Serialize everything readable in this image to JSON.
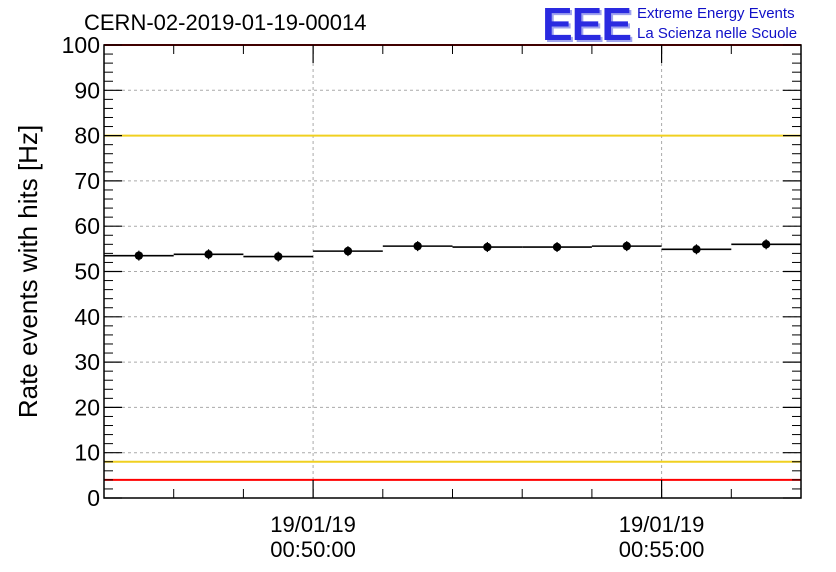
{
  "header": {
    "title": "CERN-02-2019-01-19-00014",
    "logo_text": "EEE",
    "logo_line1": "Extreme Energy Events",
    "logo_line2": "La Scienza nelle Scuole"
  },
  "colors": {
    "red_limit": "#ff0000",
    "yellow_limit": "#f0d020",
    "grid": "#aaaaaa",
    "logo": "#2a2ae0"
  },
  "chart_data": {
    "type": "scatter",
    "title": "CERN-02-2019-01-19-00014",
    "xlabel": "",
    "ylabel": "Rate events with hits [Hz]",
    "ylim": [
      0,
      100
    ],
    "yticks": [
      0,
      10,
      20,
      30,
      40,
      50,
      60,
      70,
      80,
      90,
      100
    ],
    "xlim": [
      "2019-01-19 00:47:00",
      "2019-01-19 00:57:00"
    ],
    "xticks": [
      {
        "value": "2019-01-19 00:50:00",
        "date": "19/01/19",
        "time": "00:50:00"
      },
      {
        "value": "2019-01-19 00:55:00",
        "date": "19/01/19",
        "time": "00:55:00"
      }
    ],
    "grid": true,
    "bins": [
      {
        "start": "2019-01-19 00:47:00",
        "end": "2019-01-19 00:48:00",
        "point": "2019-01-19 00:47:30",
        "value": 53.5
      },
      {
        "start": "2019-01-19 00:48:00",
        "end": "2019-01-19 00:49:00",
        "point": "2019-01-19 00:48:30",
        "value": 53.8
      },
      {
        "start": "2019-01-19 00:49:00",
        "end": "2019-01-19 00:50:00",
        "point": "2019-01-19 00:49:30",
        "value": 53.3
      },
      {
        "start": "2019-01-19 00:50:00",
        "end": "2019-01-19 00:51:00",
        "point": "2019-01-19 00:50:30",
        "value": 54.5
      },
      {
        "start": "2019-01-19 00:51:00",
        "end": "2019-01-19 00:52:00",
        "point": "2019-01-19 00:51:30",
        "value": 55.6
      },
      {
        "start": "2019-01-19 00:52:00",
        "end": "2019-01-19 00:53:00",
        "point": "2019-01-19 00:52:30",
        "value": 55.4
      },
      {
        "start": "2019-01-19 00:53:00",
        "end": "2019-01-19 00:54:00",
        "point": "2019-01-19 00:53:30",
        "value": 55.4
      },
      {
        "start": "2019-01-19 00:54:00",
        "end": "2019-01-19 00:55:00",
        "point": "2019-01-19 00:54:30",
        "value": 55.6
      },
      {
        "start": "2019-01-19 00:55:00",
        "end": "2019-01-19 00:56:00",
        "point": "2019-01-19 00:55:30",
        "value": 54.9
      },
      {
        "start": "2019-01-19 00:56:00",
        "end": "2019-01-19 00:57:00",
        "point": "2019-01-19 00:56:30",
        "value": 56.0
      }
    ],
    "reference_lines": [
      {
        "value": 100,
        "color": "red"
      },
      {
        "value": 80,
        "color": "yellow"
      },
      {
        "value": 8,
        "color": "yellow"
      },
      {
        "value": 4,
        "color": "red"
      }
    ]
  }
}
